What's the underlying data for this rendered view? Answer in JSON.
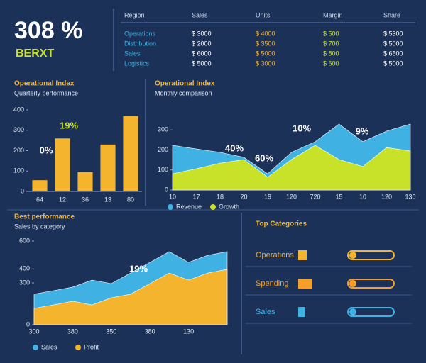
{
  "kpi": {
    "value": "308 %",
    "label": "BERXT"
  },
  "table": {
    "header": [
      "Region",
      "Sales",
      "Units",
      "Margin",
      "Share"
    ],
    "rows": [
      [
        "Operations",
        "$ 3000",
        "$ 4000",
        "$ 500",
        "$ 5300"
      ],
      [
        "Distribution",
        "$ 2000",
        "$ 3500",
        "$ 700",
        "$ 5000"
      ],
      [
        "Sales",
        "$ 6000",
        "$ 5000",
        "$ 800",
        "$ 6500"
      ],
      [
        "Logistics",
        "$ 5000",
        "$ 3000",
        "$ 600",
        "$ 5000"
      ]
    ]
  },
  "chart_data": [
    {
      "type": "bar",
      "title": "Operational Index",
      "subtitle": "Quarterly performance",
      "categories": [
        "64",
        "12",
        "36",
        "13",
        "80"
      ],
      "values": [
        55,
        260,
        95,
        230,
        370
      ],
      "color": "#f5b42e",
      "ylim": [
        0,
        400
      ],
      "yticks": [
        0,
        100,
        200,
        300,
        400
      ],
      "annotations": [
        "19%",
        "0%"
      ]
    },
    {
      "type": "area",
      "title": "Operational Index",
      "subtitle": "Monthly comparison",
      "categories": [
        "10",
        "17",
        "18",
        "20",
        "19",
        "120",
        "720",
        "15",
        "10",
        "120",
        "130"
      ],
      "series": [
        {
          "name": "Revenue",
          "color": "#3fb2e3",
          "values": [
            223,
            205,
            188,
            163,
            81,
            188,
            241,
            329,
            241,
            294,
            329
          ]
        },
        {
          "name": "Growth",
          "color": "#c8e22a",
          "values": [
            81,
            106,
            134,
            152,
            64,
            152,
            223,
            152,
            117,
            212,
            195
          ]
        }
      ],
      "ylim": [
        0,
        400
      ],
      "yticks": [
        0,
        100,
        200,
        300
      ],
      "annotations": [
        "40%",
        "60%",
        "10%",
        "9%"
      ]
    },
    {
      "type": "area",
      "title": "Best performance",
      "subtitle": "Sales by category",
      "categories": [
        "300",
        null,
        "380",
        null,
        "350",
        null,
        "380",
        null,
        "130",
        null,
        null
      ],
      "series": [
        {
          "name": "Sales",
          "color": "#3fb2e3",
          "values": [
            219,
            244,
            270,
            320,
            295,
            371,
            447,
            524,
            447,
            498,
            524
          ]
        },
        {
          "name": "Profit",
          "color": "#f5b42e",
          "values": [
            117,
            142,
            168,
            142,
            193,
            219,
            295,
            371,
            320,
            371,
            397
          ]
        }
      ],
      "ylim": [
        0,
        600
      ],
      "yticks": [
        0,
        300,
        400,
        600
      ],
      "annotations": [
        "19%"
      ]
    },
    {
      "type": "hbar",
      "title": "Top Categories",
      "categories": [
        "Operations",
        "Spending",
        "Sales"
      ],
      "values": [
        60,
        100,
        50
      ],
      "colors": [
        "#f5b42e",
        "#f5a02a",
        "#3fb2e3"
      ],
      "ylim": [
        0,
        100
      ]
    }
  ]
}
